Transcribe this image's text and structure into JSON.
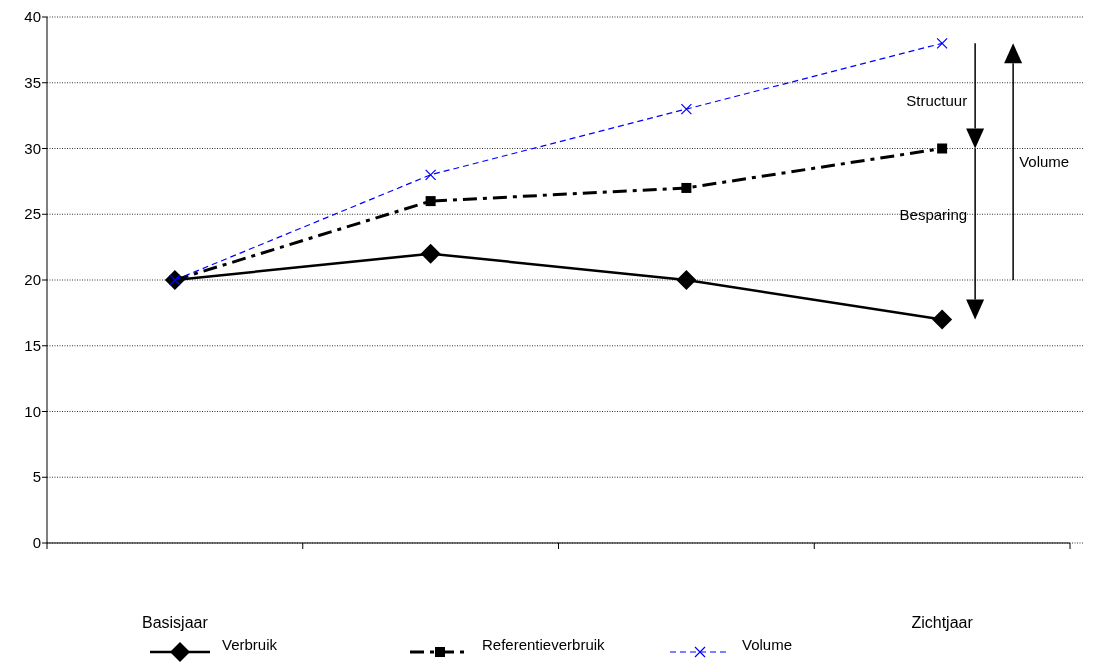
{
  "chart_data": {
    "type": "line",
    "categories": [
      "Basisjaar",
      null,
      null,
      "Zichtjaar"
    ],
    "series": [
      {
        "name": "Verbruik",
        "color": "#000000",
        "values": [
          20,
          22,
          20,
          17
        ],
        "marker": "diamond",
        "line_style": "solid"
      },
      {
        "name": "Referentieverbruik",
        "color": "#000000",
        "values": [
          20,
          26,
          27,
          30
        ],
        "marker": "square",
        "line_style": "dashdot"
      },
      {
        "name": "Volume",
        "color": "#0000ff",
        "values": [
          20,
          28,
          33,
          38
        ],
        "marker": "cross",
        "line_style": "dashed"
      }
    ],
    "ylim": [
      0,
      40
    ],
    "yticks": [
      0,
      5,
      10,
      15,
      20,
      25,
      30,
      35,
      40
    ],
    "grid": "y",
    "legend": "bottom",
    "annotations": [
      "Structuur",
      "Besparing",
      "Volume"
    ]
  }
}
